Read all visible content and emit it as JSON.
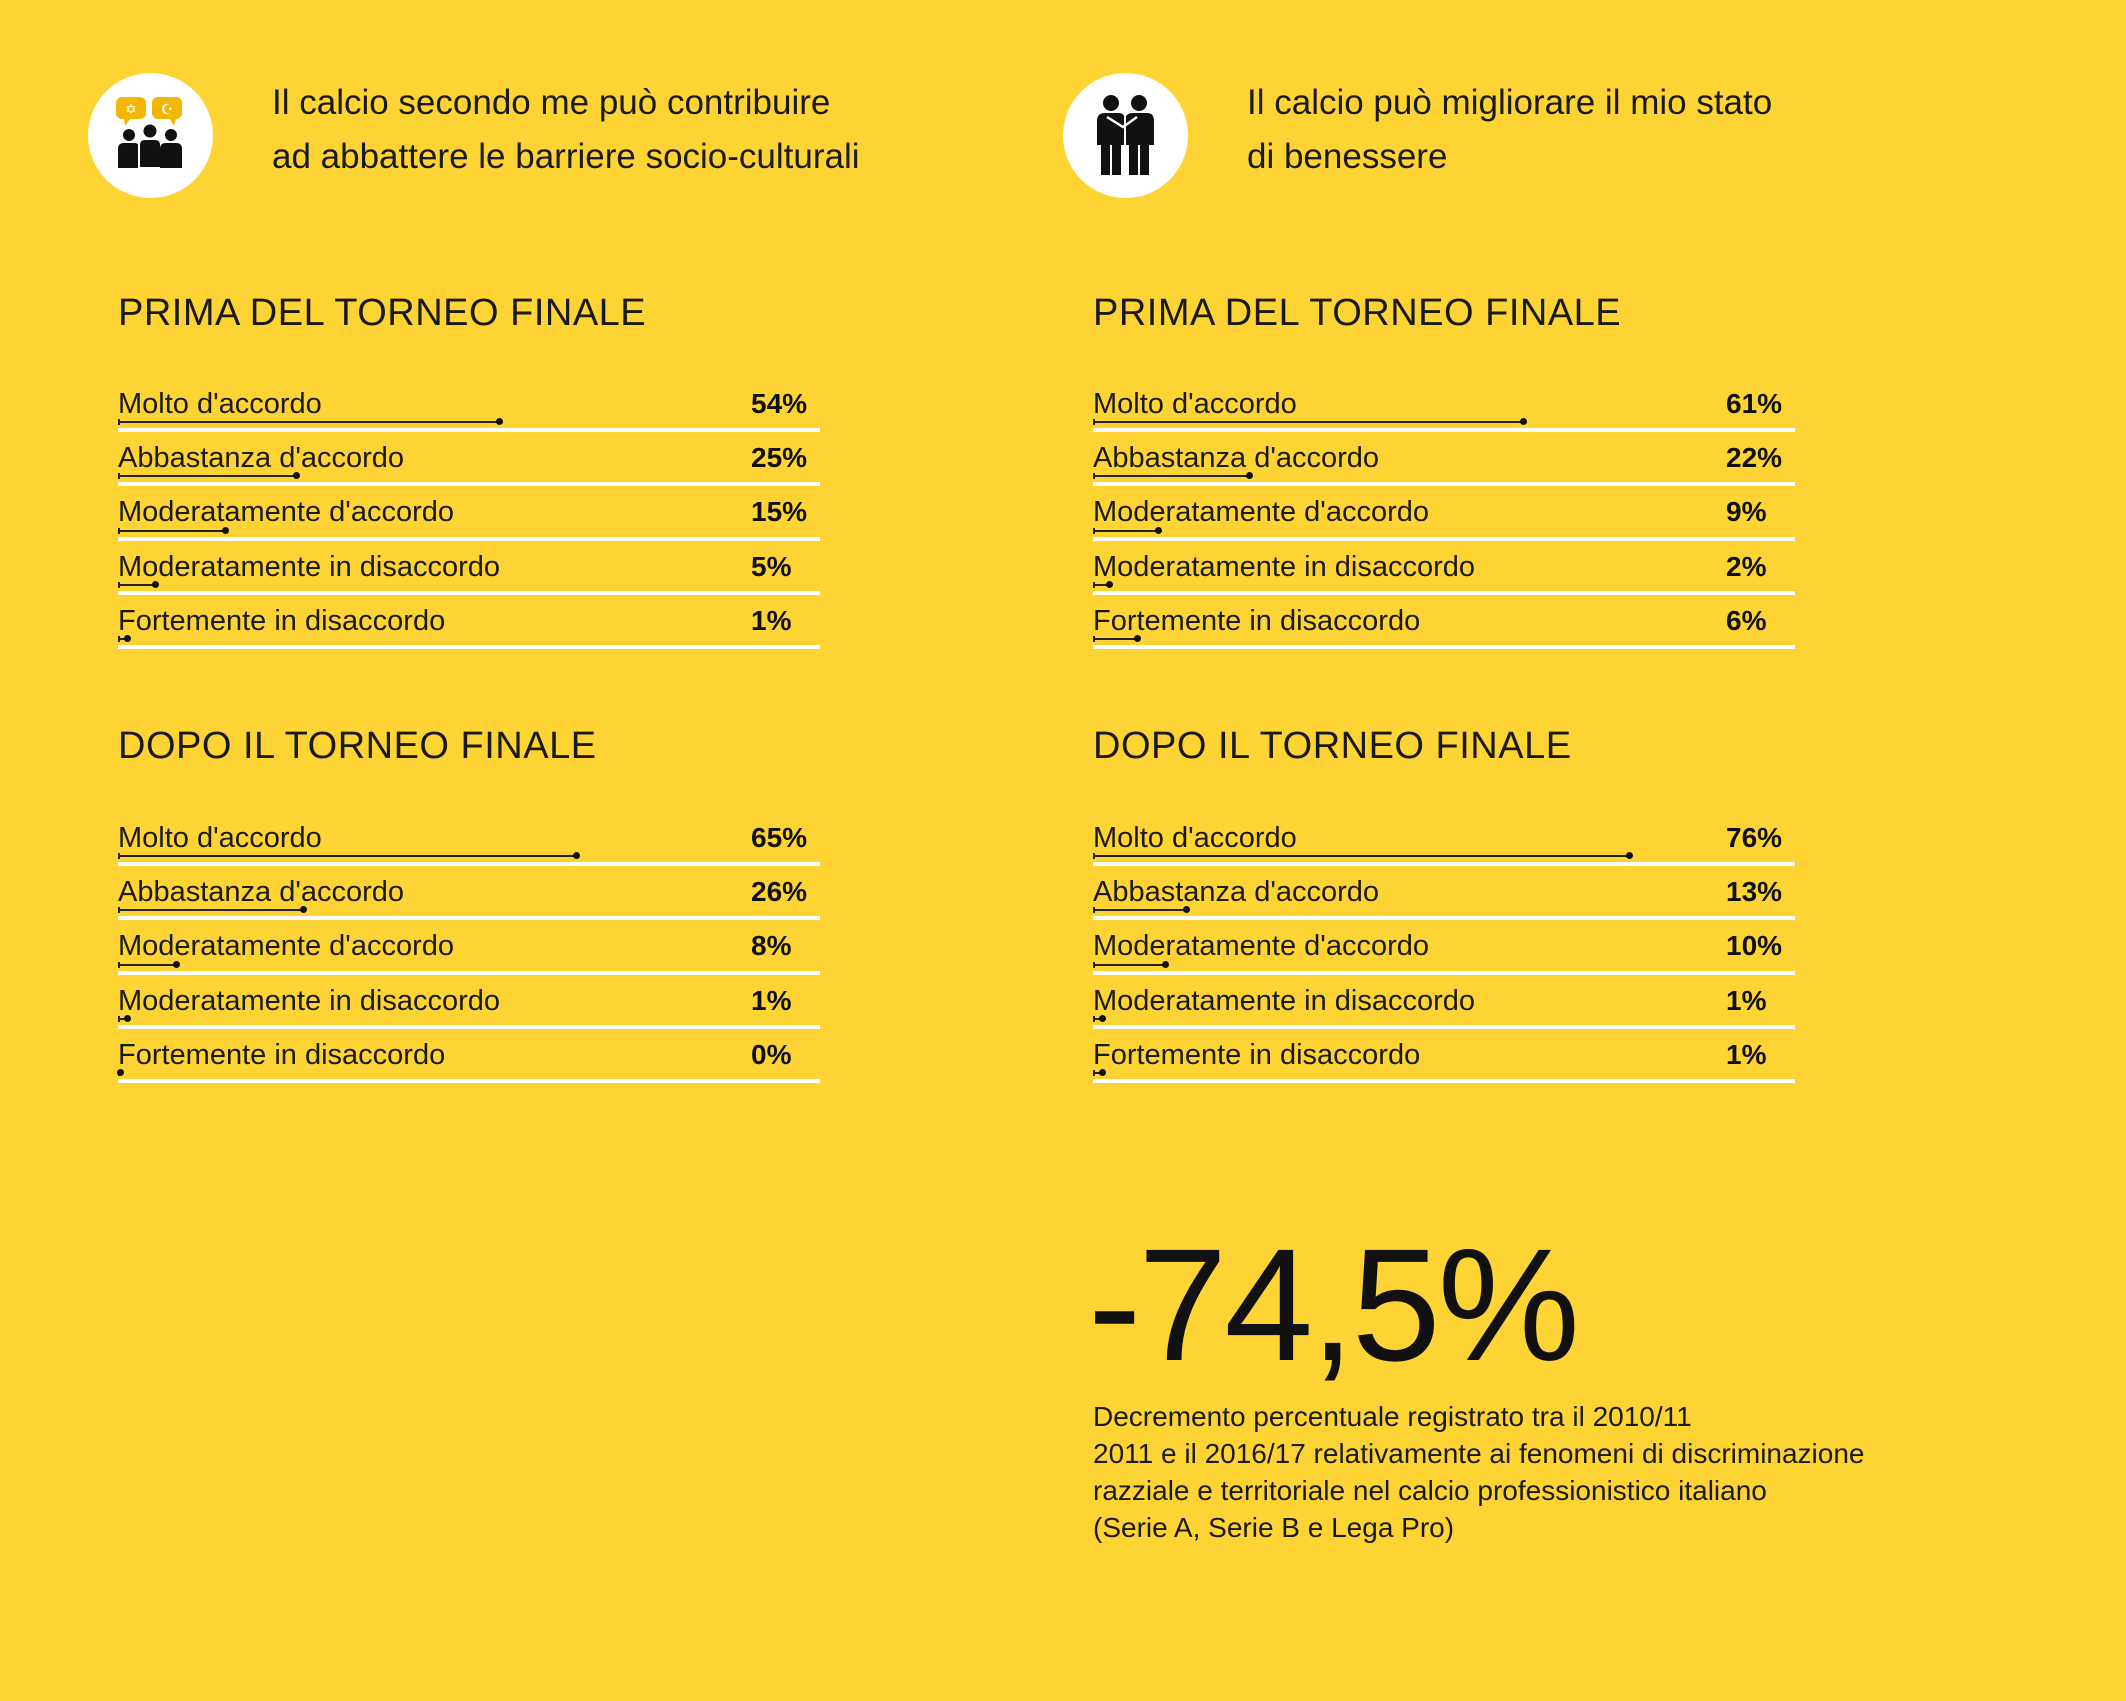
{
  "panels": [
    {
      "icon": "diversity-chat-group-icon",
      "question_lines": [
        "Il calcio secondo me può contribuire",
        "ad abbattere le barriere socio-culturali"
      ],
      "before_title": "PRIMA DEL TORNEO FINALE",
      "after_title": "DOPO IL TORNEO FINALE"
    },
    {
      "icon": "friends-embrace-icon",
      "question_lines": [
        "Il calcio può migliorare il mio stato",
        "di benessere"
      ],
      "before_title": "PRIMA DEL TORNEO FINALE",
      "after_title": "DOPO IL TORNEO FINALE"
    }
  ],
  "chart_data": [
    {
      "type": "bar",
      "title": "PRIMA DEL TORNEO FINALE",
      "categories": [
        "Molto d'accordo",
        "Abbastanza d'accordo",
        "Moderatamente d'accordo",
        "Moderatamente in disaccordo",
        "Fortemente in disaccordo"
      ],
      "values": [
        54,
        25,
        15,
        5,
        1
      ],
      "value_labels": [
        "54%",
        "25%",
        "15%",
        "5%",
        "1%"
      ],
      "ylim": [
        0,
        100
      ]
    },
    {
      "type": "bar",
      "title": "DOPO IL TORNEO FINALE",
      "categories": [
        "Molto d'accordo",
        "Abbastanza d'accordo",
        "Moderatamente d'accordo",
        "Moderatamente in disaccordo",
        "Fortemente in disaccordo"
      ],
      "values": [
        65,
        26,
        8,
        1,
        0
      ],
      "value_labels": [
        "65%",
        "26%",
        "8%",
        "1%",
        "0%"
      ],
      "ylim": [
        0,
        100
      ]
    },
    {
      "type": "bar",
      "title": "PRIMA DEL TORNEO FINALE",
      "categories": [
        "Molto d'accordo",
        "Abbastanza d'accordo",
        "Moderatamente d'accordo",
        "Moderatamente in disaccordo",
        "Fortemente in disaccordo"
      ],
      "values": [
        61,
        22,
        9,
        2,
        6
      ],
      "value_labels": [
        "61%",
        "22%",
        "9%",
        "2%",
        "6%"
      ],
      "ylim": [
        0,
        100
      ]
    },
    {
      "type": "bar",
      "title": "DOPO IL TORNEO FINALE",
      "categories": [
        "Molto d'accordo",
        "Abbastanza d'accordo",
        "Moderatamente d'accordo",
        "Moderatamente in disaccordo",
        "Fortemente in disaccordo"
      ],
      "values": [
        76,
        13,
        10,
        1,
        1
      ],
      "value_labels": [
        "76%",
        "13%",
        "10%",
        "1%",
        "1%"
      ],
      "ylim": [
        0,
        100
      ]
    }
  ],
  "highlight": {
    "value": "-74,5%",
    "caption_lines": [
      "Decremento percentuale registrato tra il 2010/11",
      "2011 e il 2016/17 relativamente ai fenomeni di discriminazione",
      "razziale e territoriale nel calcio professionistico italiano",
      "(Serie A, Serie B e Lega Pro)"
    ]
  },
  "colors": {
    "background": "#fed434",
    "bar": "#222222",
    "rule": "#ffffff",
    "text": "#111111"
  }
}
